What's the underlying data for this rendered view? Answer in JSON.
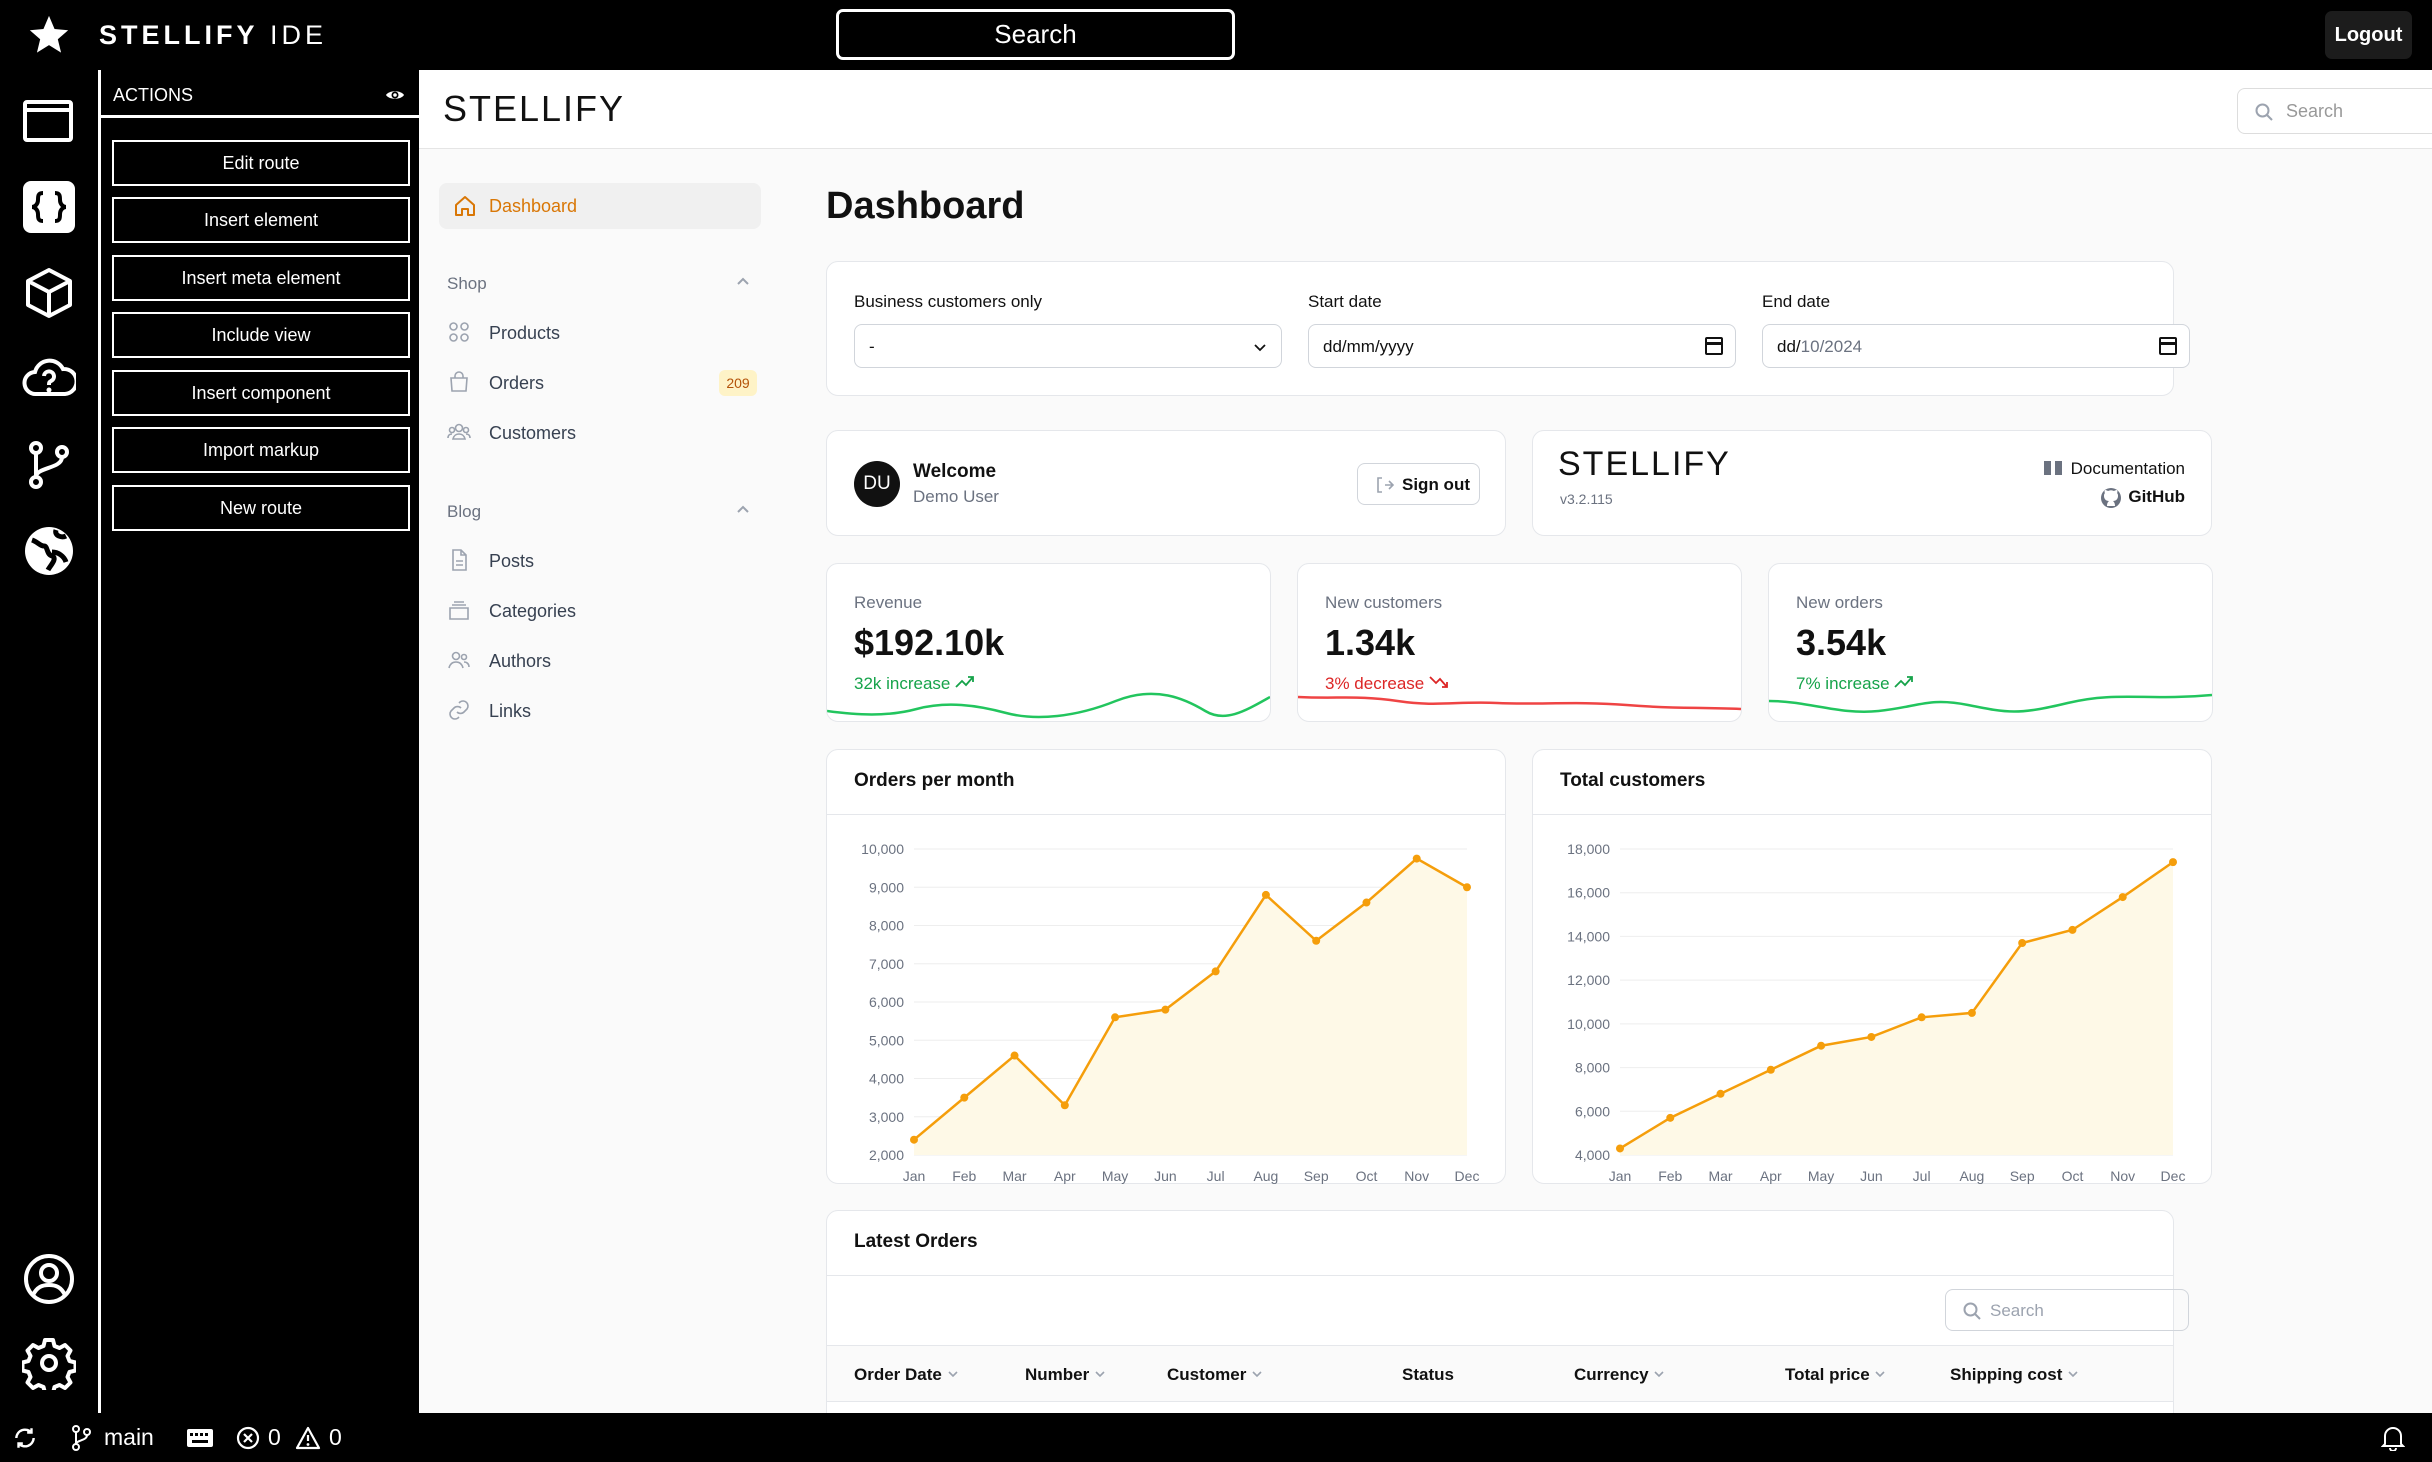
{
  "ide": {
    "brand_bold": "STELLIFY",
    "brand_light": " IDE",
    "search_label": "Search",
    "logout_label": "Logout"
  },
  "actions": {
    "title": "ACTIONS",
    "buttons": [
      "Edit route",
      "Insert element",
      "Insert meta element",
      "Include view",
      "Insert component",
      "Import markup",
      "New route"
    ]
  },
  "statusbar": {
    "branch": "main",
    "errors": "0",
    "warnings": "0"
  },
  "app": {
    "logo": "STELLIFY",
    "search_placeholder": "Search",
    "nav": {
      "dashboard": "Dashboard",
      "shop_group": "Shop",
      "shop_items": [
        "Products",
        "Orders",
        "Customers"
      ],
      "orders_badge": "209",
      "blog_group": "Blog",
      "blog_items": [
        "Posts",
        "Categories",
        "Authors",
        "Links"
      ]
    },
    "page_title": "Dashboard",
    "filters": {
      "business_label": "Business customers only",
      "business_value": "-",
      "start_label": "Start date",
      "start_value": "dd/mm/yyyy",
      "end_label": "End date",
      "end_value_dd": "dd/",
      "end_value_mm": "10",
      "end_value_yyyy": "/2024"
    },
    "welcome": {
      "avatar": "DU",
      "title": "Welcome",
      "user": "Demo User",
      "signout": "Sign out"
    },
    "info": {
      "logo": "STELLIFY",
      "version": "v3.2.115",
      "documentation": "Documentation",
      "github": "GitHub"
    },
    "stats": [
      {
        "label": "Revenue",
        "value": "$192.10k",
        "trend": "32k increase",
        "direction": "up",
        "color": "#16a34a"
      },
      {
        "label": "New customers",
        "value": "1.34k",
        "trend": "3% decrease",
        "direction": "down",
        "color": "#dc2626"
      },
      {
        "label": "New orders",
        "value": "3.54k",
        "trend": "7% increase",
        "direction": "up",
        "color": "#16a34a"
      }
    ],
    "latest_orders": {
      "title": "Latest Orders",
      "search_placeholder": "Search",
      "columns": [
        "Order Date",
        "Number",
        "Customer",
        "Status",
        "Currency",
        "Total price",
        "Shipping cost"
      ]
    }
  },
  "chart_data": [
    {
      "type": "line",
      "title": "Orders per month",
      "categories": [
        "Jan",
        "Feb",
        "Mar",
        "Apr",
        "May",
        "Jun",
        "Jul",
        "Aug",
        "Sep",
        "Oct",
        "Nov",
        "Dec"
      ],
      "series": [
        {
          "name": "Orders",
          "values": [
            2400,
            3500,
            4600,
            3300,
            5600,
            5800,
            6800,
            8800,
            7600,
            8600,
            9750,
            9000
          ]
        }
      ],
      "yticks": [
        "10,000",
        "9,000",
        "8,000",
        "7,000",
        "6,000",
        "5,000",
        "4,000",
        "3,000",
        "2,000"
      ],
      "ylim": [
        2000,
        10000
      ],
      "color": "#f59e0b"
    },
    {
      "type": "line",
      "title": "Total customers",
      "categories": [
        "Jan",
        "Feb",
        "Mar",
        "Apr",
        "May",
        "Jun",
        "Jul",
        "Aug",
        "Sep",
        "Oct",
        "Nov",
        "Dec"
      ],
      "series": [
        {
          "name": "Customers",
          "values": [
            4300,
            5700,
            6800,
            7900,
            9000,
            9400,
            10300,
            10500,
            13700,
            14300,
            15800,
            17400
          ]
        }
      ],
      "yticks": [
        "18,000",
        "16,000",
        "14,000",
        "12,000",
        "10,000",
        "8,000",
        "6,000",
        "4,000"
      ],
      "ylim": [
        4000,
        18000
      ],
      "color": "#f59e0b"
    }
  ]
}
